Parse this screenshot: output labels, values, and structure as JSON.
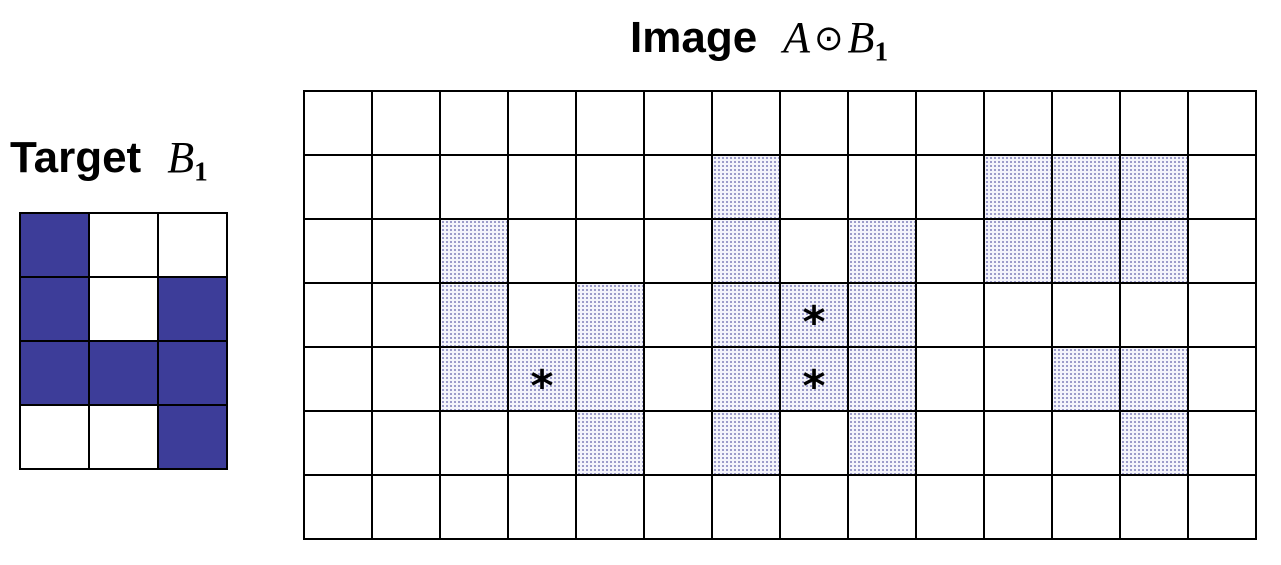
{
  "colors": {
    "filled": "#3d3d99",
    "shaded": "#6e6eb0",
    "grid_line": "#000000"
  },
  "target": {
    "title_word": "Target",
    "symbol": "B",
    "subscript": "1",
    "rows": 4,
    "cols": 3,
    "filled_cells": [
      [
        0,
        0
      ],
      [
        1,
        0
      ],
      [
        1,
        2
      ],
      [
        2,
        0
      ],
      [
        2,
        1
      ],
      [
        2,
        2
      ],
      [
        3,
        2
      ]
    ]
  },
  "image": {
    "title_word": "Image",
    "symbol_a": "A",
    "operator": "⊙",
    "symbol_b": "B",
    "subscript": "1",
    "rows": 7,
    "cols": 14,
    "marker": "*",
    "shaded_cells": [
      [
        1,
        6
      ],
      [
        1,
        10
      ],
      [
        1,
        11
      ],
      [
        1,
        12
      ],
      [
        2,
        2
      ],
      [
        2,
        6
      ],
      [
        2,
        8
      ],
      [
        2,
        10
      ],
      [
        2,
        11
      ],
      [
        2,
        12
      ],
      [
        3,
        2
      ],
      [
        3,
        4
      ],
      [
        3,
        6
      ],
      [
        3,
        7
      ],
      [
        3,
        8
      ],
      [
        4,
        2
      ],
      [
        4,
        3
      ],
      [
        4,
        4
      ],
      [
        4,
        6
      ],
      [
        4,
        7
      ],
      [
        4,
        8
      ],
      [
        4,
        11
      ],
      [
        4,
        12
      ],
      [
        5,
        4
      ],
      [
        5,
        6
      ],
      [
        5,
        8
      ],
      [
        5,
        12
      ]
    ],
    "marked_cells": [
      [
        3,
        7
      ],
      [
        4,
        3
      ],
      [
        4,
        7
      ]
    ]
  }
}
